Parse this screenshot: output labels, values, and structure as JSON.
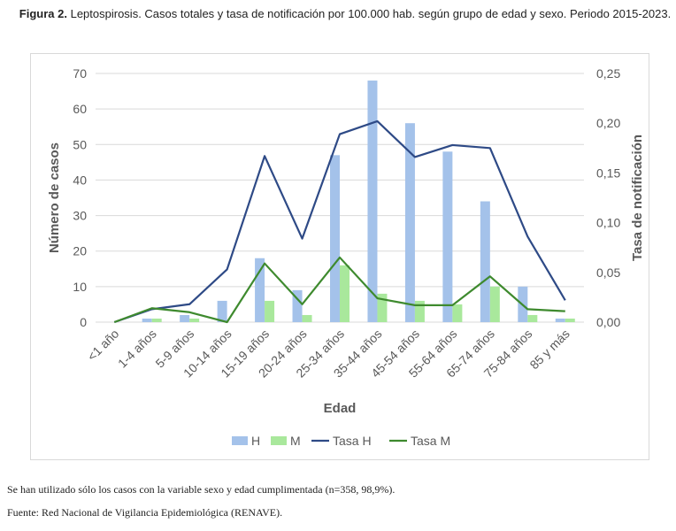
{
  "caption": {
    "label": "Figura 2.",
    "text": "Leptospirosis. Casos totales y tasa de notificación por 100.000 hab. según grupo de edad y sexo. Periodo 2015-2023."
  },
  "footnotes": {
    "note": "Se han utilizado sólo los casos con la variable sexo y edad cumplimentada (n=358, 98,9%).",
    "source": "Fuente: Red Nacional de Vigilancia Epidemiológica (RENAVE)."
  },
  "colors": {
    "H_bar": "#a4c2ea",
    "M_bar": "#a9e89c",
    "Tasa_H": "#2e4a86",
    "Tasa_M": "#3e8a2e",
    "grid": "#d9d9d9",
    "text": "#595959"
  },
  "chart_data": {
    "type": "bar",
    "title": "",
    "xlabel": "Edad",
    "ylabel": "Número de casos",
    "y2label": "Tasa de notificación",
    "categories": [
      "<1 año",
      "1-4 años",
      "5-9 años",
      "10-14 años",
      "15-19 años",
      "20-24 años",
      "25-34 años",
      "35-44 años",
      "45-54 años",
      "55-64 años",
      "65-74 años",
      "75-84 años",
      "85 y más"
    ],
    "ylim": [
      0,
      70
    ],
    "yticks": [
      "0",
      "10",
      "20",
      "30",
      "40",
      "50",
      "60",
      "70"
    ],
    "y2lim": [
      0,
      0.25
    ],
    "y2ticks": [
      "0,00",
      "0,05",
      "0,10",
      "0,15",
      "0,20",
      "0,25"
    ],
    "grid": true,
    "legend_position": "bottom",
    "series": [
      {
        "name": "H",
        "kind": "bar",
        "axis": "left",
        "values": [
          0,
          1,
          2,
          6,
          18,
          9,
          47,
          68,
          56,
          48,
          34,
          10,
          1
        ]
      },
      {
        "name": "M",
        "kind": "bar",
        "axis": "left",
        "values": [
          0,
          1,
          1,
          0,
          6,
          2,
          16,
          8,
          6,
          5,
          10,
          2,
          1
        ]
      },
      {
        "name": "Tasa H",
        "kind": "line",
        "axis": "right",
        "values": [
          0.0,
          0.013,
          0.018,
          0.053,
          0.167,
          0.084,
          0.189,
          0.202,
          0.166,
          0.178,
          0.175,
          0.086,
          0.022
        ]
      },
      {
        "name": "Tasa M",
        "kind": "line",
        "axis": "right",
        "values": [
          0.0,
          0.014,
          0.01,
          0.0,
          0.059,
          0.018,
          0.065,
          0.024,
          0.017,
          0.017,
          0.046,
          0.013,
          0.011
        ]
      }
    ]
  }
}
